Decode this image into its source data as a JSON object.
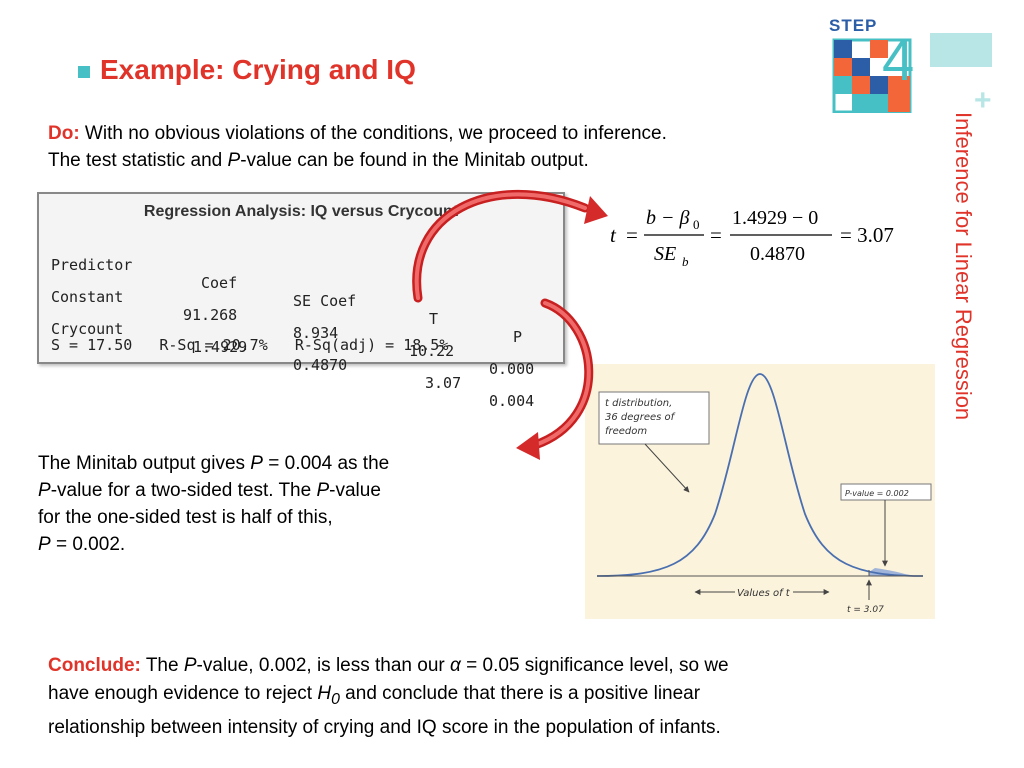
{
  "title": "Example: Crying and IQ",
  "logo": {
    "step_word": "STEP",
    "step_number": "4",
    "plus": "+"
  },
  "side_label": "Inference for Linear Regression",
  "do_section": {
    "lead": "Do:",
    "text1": " With no obvious violations of the conditions, we proceed to inference.",
    "text2a": "The test statistic and ",
    "text2_italic": "P",
    "text2b": "-value can be found in the Minitab output."
  },
  "minitab": {
    "title": "Regression Analysis: IQ versus Crycount",
    "headers": [
      "Predictor",
      "Coef",
      "SE Coef",
      "T",
      "P"
    ],
    "rows": [
      [
        "Constant",
        "91.268",
        "8.934",
        "10.22",
        "0.000"
      ],
      [
        "Crycount",
        "1.4929",
        "0.4870",
        "3.07",
        "0.004"
      ]
    ],
    "summary": "S = 17.50   R-Sq = 20.7%   R-Sq(adj) = 18.5%"
  },
  "formula": {
    "t": "t",
    "eq": "=",
    "num1": "b − β",
    "beta_sub": "0",
    "den1": "SE",
    "den1_sub": "b",
    "num2": "1.4929 − 0",
    "den2": "0.4870",
    "result": "= 3.07"
  },
  "minitab_text": {
    "l1a": "The Minitab output gives ",
    "l1p": "P",
    "l1b": " = 0.004 as the",
    "l2p": "P",
    "l2a": "-value for a two-sided test. The ",
    "l2p2": "P",
    "l2b": "-value",
    "l3": "for the one-sided test is half of this,",
    "l4p": "P",
    "l4b": " = 0.002."
  },
  "tdist_figure": {
    "label_dist1": "t distribution,",
    "label_dist2": "36 degrees of",
    "label_dist3": "freedom",
    "label_p": "P-value = 0.002",
    "label_axis": "Values of t",
    "label_t": "t = 3.07"
  },
  "conclude": {
    "lead": "Conclude:",
    "a": " The ",
    "p": "P",
    "b": "-value, 0.002, is less than our ",
    "alpha": "α",
    "c": " = 0.05 significance level, so we",
    "line2a": "have enough evidence to reject ",
    "h": "H",
    "h_sub": "0",
    "line2b": " and conclude that there is a positive linear",
    "line3": "relationship between intensity of crying and IQ score in the population of infants."
  },
  "colors": {
    "accent_red": "#e0342a",
    "teal": "#46c0c4",
    "blue": "#2b5ea6",
    "orange": "#f2663a"
  }
}
